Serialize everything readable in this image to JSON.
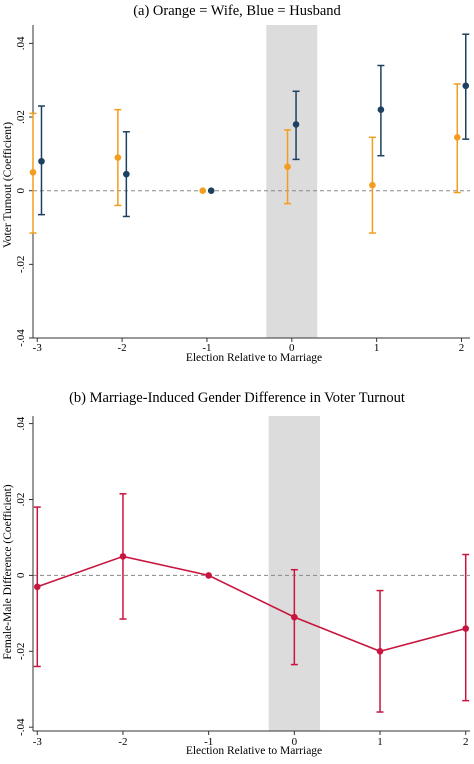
{
  "colors": {
    "wife": "#F39C1E",
    "husband": "#1B4060",
    "difference": "#C8153F",
    "shade": "#DCDCDC",
    "axis": "#333333",
    "zero_line": "#888888"
  },
  "chart_data": [
    {
      "type": "scatter",
      "title": "(a) Orange = Wife, Blue = Husband",
      "xlabel": "Election Relative to Marriage",
      "ylabel": "Voter Turnout (Coefficient)",
      "xlim": [
        -3.05,
        2.1
      ],
      "ylim": [
        -0.04,
        0.045
      ],
      "x_ticks": [
        -3,
        -2,
        -1,
        0,
        1,
        2
      ],
      "x_tick_labels": [
        "-3",
        "-2",
        "-1",
        "0",
        "1",
        "2"
      ],
      "y_ticks": [
        -0.04,
        -0.02,
        0,
        0.02,
        0.04
      ],
      "y_tick_labels": [
        "-.04",
        "-.02",
        "0",
        ".02",
        ".04"
      ],
      "shaded_region": [
        -0.3,
        0.3
      ],
      "reference_line_y": 0,
      "series": [
        {
          "name": "Wife",
          "color_key": "wife",
          "x_offset": -0.05,
          "points": [
            {
              "x": -3,
              "y": 0.005,
              "lo": -0.0115,
              "hi": 0.021
            },
            {
              "x": -2,
              "y": 0.009,
              "lo": -0.004,
              "hi": 0.022
            },
            {
              "x": -1,
              "y": 0.0,
              "lo": 0.0,
              "hi": 0.0
            },
            {
              "x": 0,
              "y": 0.0065,
              "lo": -0.0035,
              "hi": 0.0165
            },
            {
              "x": 1,
              "y": 0.0015,
              "lo": -0.0115,
              "hi": 0.0145
            },
            {
              "x": 2,
              "y": 0.0145,
              "lo": -0.0005,
              "hi": 0.029
            }
          ]
        },
        {
          "name": "Husband",
          "color_key": "husband",
          "x_offset": 0.05,
          "points": [
            {
              "x": -3,
              "y": 0.008,
              "lo": -0.0065,
              "hi": 0.023
            },
            {
              "x": -2,
              "y": 0.0045,
              "lo": -0.007,
              "hi": 0.016
            },
            {
              "x": -1,
              "y": 0.0,
              "lo": 0.0,
              "hi": 0.0
            },
            {
              "x": 0,
              "y": 0.018,
              "lo": 0.0085,
              "hi": 0.027
            },
            {
              "x": 1,
              "y": 0.022,
              "lo": 0.0095,
              "hi": 0.034
            },
            {
              "x": 2,
              "y": 0.0285,
              "lo": 0.014,
              "hi": 0.0425
            }
          ]
        }
      ]
    },
    {
      "type": "line",
      "title": "(b) Marriage-Induced Gender Difference in Voter Turnout",
      "xlabel": "Election Relative to Marriage",
      "ylabel": "Female-Male Difference (Coefficient)",
      "xlim": [
        -3.05,
        2.05
      ],
      "ylim": [
        -0.041,
        0.042
      ],
      "x_ticks": [
        -3,
        -2,
        -1,
        0,
        1,
        2
      ],
      "x_tick_labels": [
        "-3",
        "-2",
        "-1",
        "0",
        "1",
        "2"
      ],
      "y_ticks": [
        -0.04,
        -0.02,
        0,
        0.02,
        0.04
      ],
      "y_tick_labels": [
        "-.04",
        "-.02",
        "0",
        ".02",
        ".04"
      ],
      "shaded_region": [
        -0.3,
        0.3
      ],
      "reference_line_y": 0,
      "series": [
        {
          "name": "Difference",
          "color_key": "difference",
          "x_offset": 0,
          "points": [
            {
              "x": -3,
              "y": -0.003,
              "lo": -0.024,
              "hi": 0.018
            },
            {
              "x": -2,
              "y": 0.005,
              "lo": -0.0115,
              "hi": 0.0215
            },
            {
              "x": -1,
              "y": 0.0,
              "lo": 0.0,
              "hi": 0.0
            },
            {
              "x": 0,
              "y": -0.011,
              "lo": -0.0235,
              "hi": 0.0015
            },
            {
              "x": 1,
              "y": -0.02,
              "lo": -0.036,
              "hi": -0.004
            },
            {
              "x": 2,
              "y": -0.014,
              "lo": -0.033,
              "hi": 0.0055
            }
          ]
        }
      ]
    }
  ]
}
